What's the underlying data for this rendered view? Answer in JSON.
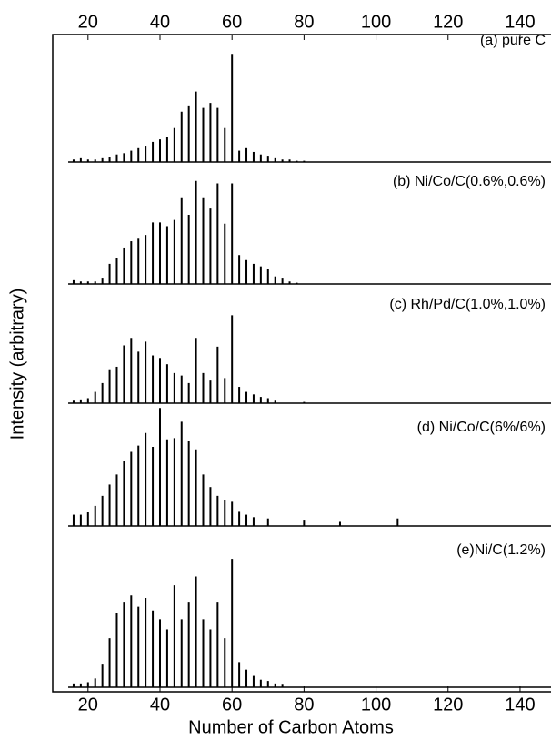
{
  "chart_data": {
    "type": "spectrum",
    "xlabel": "Number of Carbon Atoms",
    "ylabel": "Intensity (arbitrary)",
    "xlim": [
      10.2,
      148.6
    ],
    "xticks": [
      20,
      40,
      60,
      80,
      100,
      120,
      140
    ],
    "ylim": [
      0,
      105
    ],
    "color": "#000000",
    "panels": [
      {
        "label": "(a) pure C",
        "x": [
          16,
          18,
          20,
          22,
          24,
          26,
          28,
          30,
          32,
          34,
          36,
          38,
          40,
          42,
          44,
          46,
          48,
          50,
          52,
          54,
          56,
          58,
          60,
          62,
          64,
          66,
          68,
          70,
          72,
          74,
          76,
          78,
          80
        ],
        "values": [
          2,
          3,
          2,
          2,
          3,
          4,
          6,
          7,
          9,
          11,
          13,
          16,
          18,
          20,
          27,
          40,
          45,
          56,
          43,
          47,
          43,
          27,
          86,
          9,
          11,
          8,
          6,
          5,
          3,
          2,
          2,
          1,
          1
        ]
      },
      {
        "label": "(b) Ni/Co/C(0.6%,0.6%)",
        "x": [
          16,
          18,
          20,
          22,
          24,
          26,
          28,
          30,
          32,
          34,
          36,
          38,
          40,
          42,
          44,
          46,
          48,
          50,
          52,
          54,
          56,
          58,
          60,
          62,
          64,
          66,
          68,
          70,
          72,
          74,
          76,
          78
        ],
        "values": [
          3,
          2,
          2,
          2,
          5,
          16,
          21,
          29,
          34,
          36,
          39,
          49,
          49,
          46,
          51,
          69,
          55,
          82,
          69,
          60,
          80,
          48,
          80,
          23,
          19,
          16,
          14,
          12,
          6,
          5,
          2,
          1
        ]
      },
      {
        "label": "(c) Rh/Pd/C(1.0%,1.0%)",
        "x": [
          16,
          18,
          20,
          22,
          24,
          26,
          28,
          30,
          32,
          34,
          36,
          38,
          40,
          42,
          44,
          46,
          48,
          50,
          52,
          54,
          56,
          58,
          60,
          62,
          64,
          66,
          68,
          70,
          72,
          80
        ],
        "values": [
          2,
          3,
          4,
          9,
          16,
          27,
          29,
          46,
          52,
          41,
          49,
          38,
          36,
          31,
          24,
          22,
          16,
          52,
          24,
          18,
          45,
          20,
          70,
          13,
          9,
          7,
          5,
          4,
          2,
          1
        ]
      },
      {
        "label": "(d) Ni/Co/C(6%/6%)",
        "x": [
          16,
          18,
          20,
          22,
          24,
          26,
          28,
          30,
          32,
          34,
          36,
          38,
          40,
          42,
          44,
          46,
          48,
          50,
          52,
          54,
          56,
          58,
          60,
          62,
          64,
          66,
          70,
          80,
          90,
          106
        ],
        "values": [
          9,
          9,
          11,
          16,
          24,
          33,
          41,
          52,
          59,
          64,
          74,
          63,
          94,
          69,
          70,
          83,
          68,
          61,
          41,
          31,
          24,
          21,
          20,
          12,
          9,
          7,
          6,
          5,
          4,
          6
        ]
      },
      {
        "label": "(e)Ni/C(1.2%)",
        "x": [
          16,
          18,
          20,
          22,
          24,
          26,
          28,
          30,
          32,
          34,
          36,
          38,
          40,
          42,
          44,
          46,
          48,
          50,
          52,
          54,
          56,
          58,
          60,
          62,
          64,
          66,
          68,
          70,
          72,
          74
        ],
        "values": [
          3,
          3,
          4,
          7,
          18,
          39,
          59,
          68,
          73,
          64,
          71,
          61,
          54,
          46,
          81,
          54,
          68,
          88,
          54,
          46,
          68,
          39,
          102,
          20,
          14,
          9,
          6,
          5,
          3,
          2
        ]
      }
    ]
  }
}
